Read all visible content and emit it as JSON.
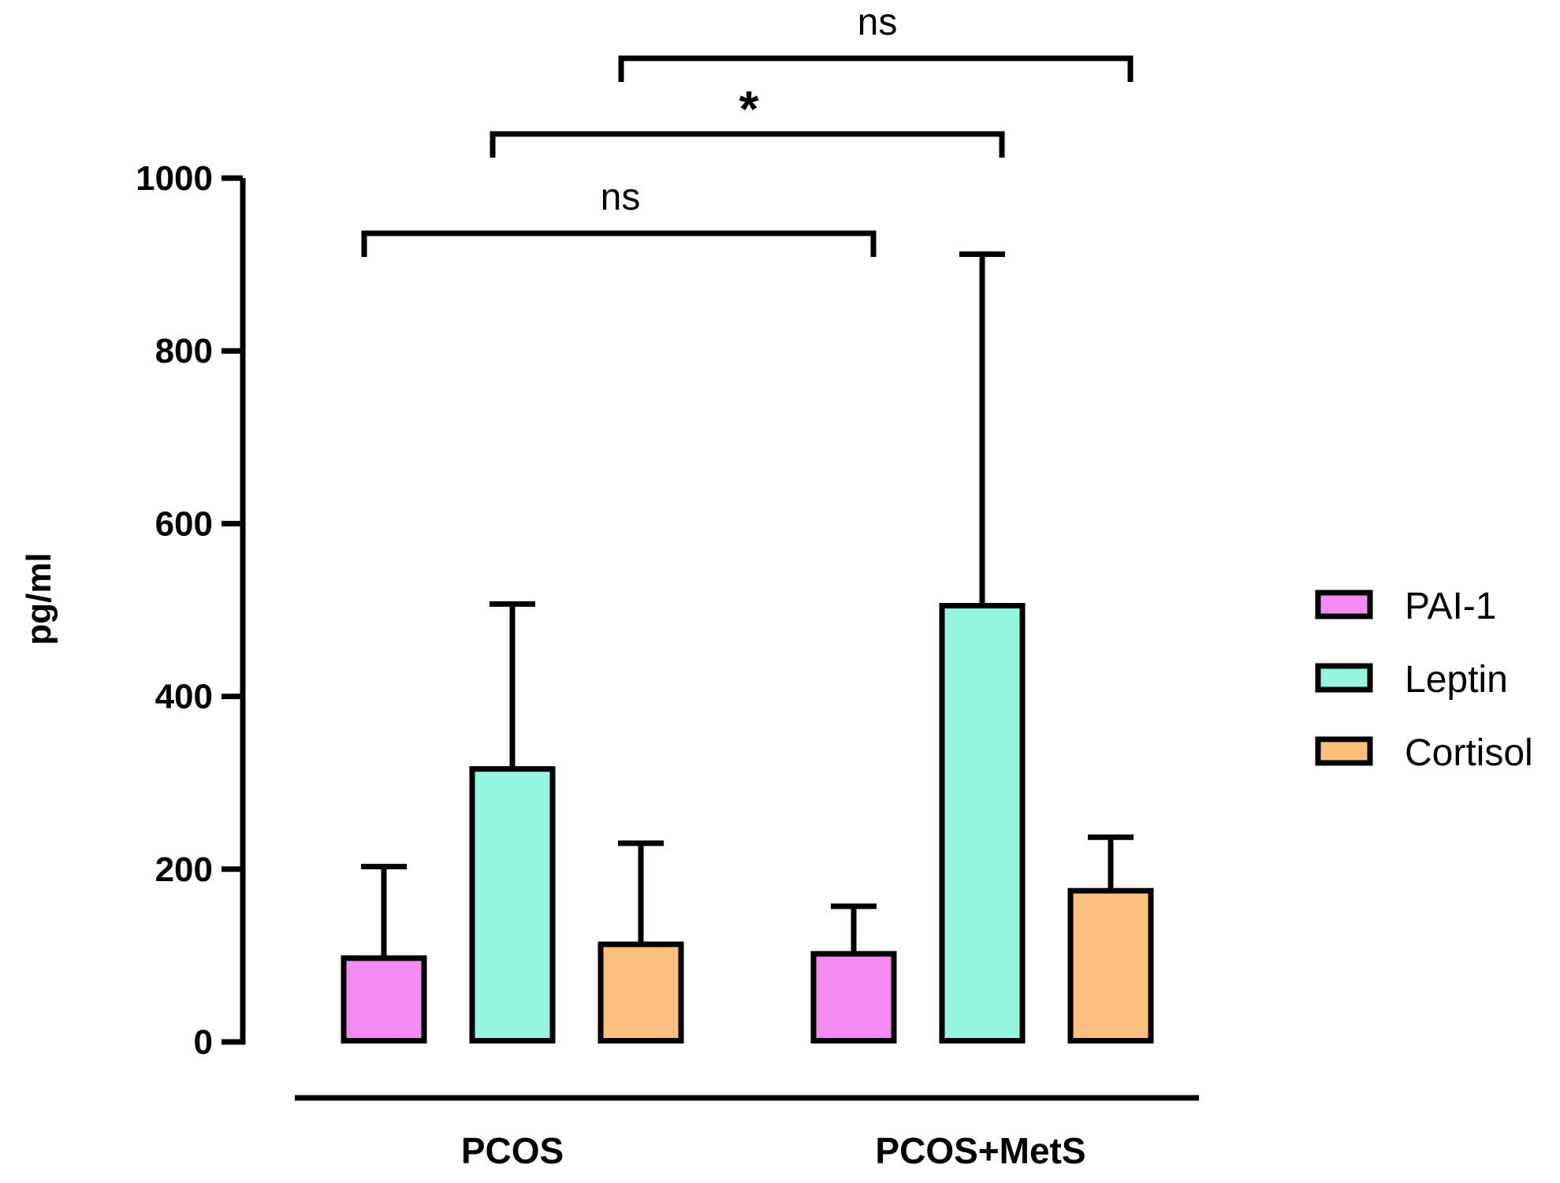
{
  "chart_data": {
    "type": "bar",
    "title": "",
    "xlabel": "",
    "ylabel": "pg/ml",
    "ylim": [
      0,
      1000
    ],
    "yticks": [
      0,
      200,
      400,
      600,
      800,
      1000
    ],
    "grid": false,
    "legend_position": "right",
    "categories": [
      "PCOS",
      "PCOS+MetS"
    ],
    "series": [
      {
        "name": "PAI-1",
        "color": "#F38BF3",
        "values": [
          97,
          102
        ],
        "errors_upper": [
          203,
          157
        ]
      },
      {
        "name": "Leptin",
        "color": "#94F6E0",
        "values": [
          316,
          505
        ],
        "errors_upper": [
          507,
          912
        ]
      },
      {
        "name": "Cortisol",
        "color": "#FDBF7D",
        "values": [
          113,
          175
        ],
        "errors_upper": [
          230,
          237
        ]
      }
    ],
    "significance": [
      {
        "from": "PCOS PAI-1",
        "to": "PCOS+MetS PAI-1",
        "label": "ns"
      },
      {
        "from": "PCOS Leptin",
        "to": "PCOS+MetS Leptin",
        "label": "*"
      },
      {
        "from": "PCOS Cortisol",
        "to": "PCOS+MetS Cortisol",
        "label": "ns"
      }
    ]
  }
}
